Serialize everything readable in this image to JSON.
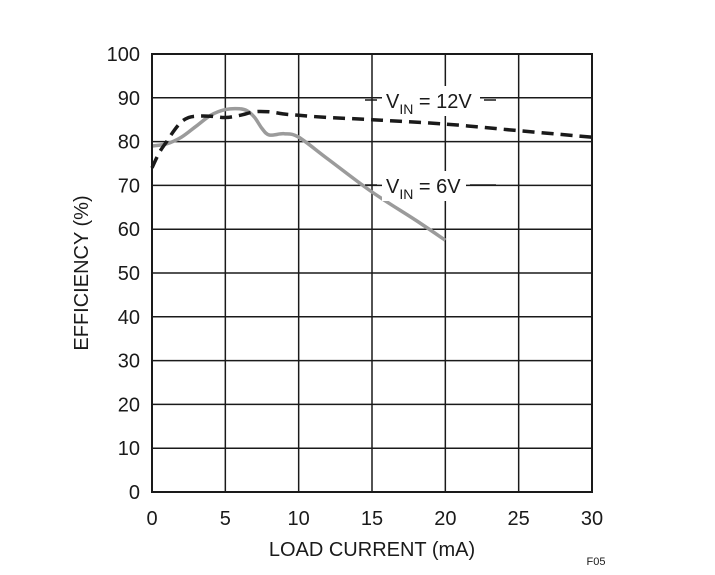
{
  "chart_data": {
    "type": "line",
    "title": "",
    "xlabel": "LOAD CURRENT (mA)",
    "ylabel": "EFFICIENCY (%)",
    "xlim": [
      0,
      30
    ],
    "ylim": [
      0,
      100
    ],
    "xticks": [
      0,
      5,
      10,
      15,
      20,
      25,
      30
    ],
    "yticks": [
      0,
      10,
      20,
      30,
      40,
      50,
      60,
      70,
      80,
      90,
      100
    ],
    "grid": true,
    "legend": "none",
    "series": [
      {
        "name": "VIN = 12V",
        "label_main": "V",
        "label_sub": "IN",
        "label_rest": " = 12V",
        "style": "dashed",
        "color": "#1a1a1a",
        "x": [
          0,
          0.5,
          1,
          1.5,
          2,
          2.5,
          3,
          4,
          5,
          6,
          7,
          8,
          9,
          10,
          12,
          15,
          20,
          25,
          30
        ],
        "y": [
          74,
          77.5,
          80,
          82.5,
          84.5,
          85.5,
          85.8,
          85.8,
          85.5,
          86,
          86.8,
          86.8,
          86.3,
          86,
          85.5,
          85,
          84,
          82.5,
          81
        ]
      },
      {
        "name": "VIN = 6V",
        "label_main": "V",
        "label_sub": "IN",
        "label_rest": " = 6V",
        "style": "solid",
        "color": "#9b9b9b",
        "x": [
          0,
          1,
          2,
          3,
          4,
          5,
          6,
          6.5,
          7,
          7.5,
          8,
          9,
          10,
          12,
          15,
          18,
          20
        ],
        "y": [
          79,
          79.5,
          81,
          83.5,
          86,
          87.3,
          87.5,
          87,
          85.5,
          83,
          81.5,
          81.8,
          81,
          76,
          68.5,
          62,
          57.5
        ]
      }
    ]
  },
  "figure_id": "F05"
}
